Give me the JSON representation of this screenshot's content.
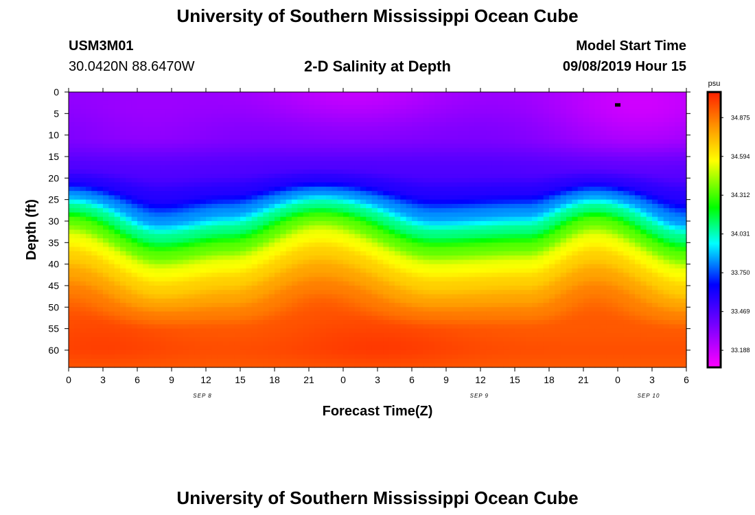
{
  "header": {
    "title": "University of Southern Mississippi Ocean Cube",
    "station_id": "USM3M01",
    "station_coords": "30.0420N 88.6470W",
    "chart_title": "2-D Salinity at Depth",
    "model_label": "Model Start Time",
    "model_start": "09/08/2019 Hour 15"
  },
  "footer": {
    "title": "University of Southern Mississippi Ocean Cube"
  },
  "chart_data": {
    "type": "heatmap",
    "title": "2-D Salinity at Depth",
    "xlabel": "Forecast Time(Z)",
    "ylabel": "Depth (ft)",
    "x_hours": [
      0,
      54
    ],
    "x_ticks": [
      "0",
      "3",
      "6",
      "9",
      "12",
      "15",
      "18",
      "21",
      "0",
      "3",
      "6",
      "9",
      "12",
      "15",
      "18",
      "21",
      "0",
      "3",
      "6"
    ],
    "x_date_labels": [
      {
        "label": "SEP 8",
        "hour": 11.7
      },
      {
        "label": "SEP 9",
        "hour": 35.9
      },
      {
        "label": "SEP 10",
        "hour": 50.7
      }
    ],
    "y_ticks": [
      0,
      5,
      10,
      15,
      20,
      25,
      30,
      35,
      40,
      45,
      50,
      55,
      60
    ],
    "ylim": [
      0,
      64
    ],
    "colorbar": {
      "unit": "psu",
      "ticks": [
        "34.875",
        "34.594",
        "34.312",
        "34.031",
        "33.750",
        "33.469",
        "33.188"
      ],
      "min": 33.05,
      "max": 35.0
    },
    "marker": {
      "hour": 48,
      "depth": 3
    },
    "profile": {
      "depth_ft": [
        0,
        10,
        18,
        22,
        26,
        30,
        34,
        38,
        42,
        46,
        50,
        55,
        60,
        64
      ],
      "salinity_psu": [
        33.3,
        33.35,
        33.45,
        33.55,
        33.8,
        34.05,
        34.3,
        34.5,
        34.62,
        34.72,
        34.8,
        34.88,
        34.9,
        34.88
      ]
    },
    "thermocline_shift_ft": {
      "hours": [
        0,
        8,
        14,
        22,
        32,
        40,
        46,
        54
      ],
      "shift": [
        -4,
        4,
        2,
        -5,
        3,
        2,
        -4,
        4
      ]
    }
  }
}
